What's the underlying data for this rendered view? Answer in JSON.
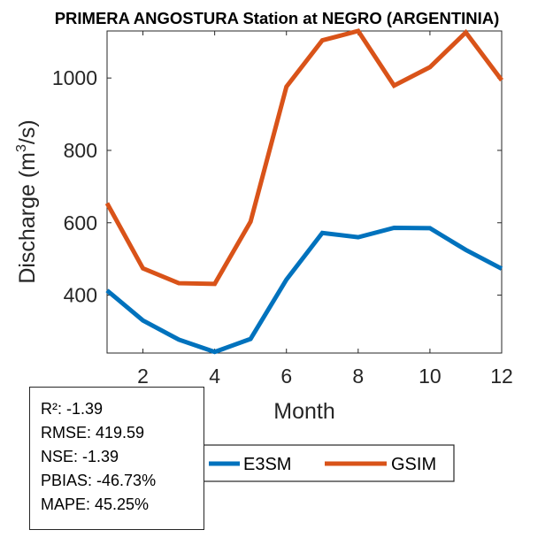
{
  "chart_data": {
    "type": "line",
    "title": "PRIMERA ANGOSTURA  Station at  NEGRO (ARGENTINIA)",
    "xlabel": "Month",
    "ylabel": "Discharge (m",
    "ylabel_sup": "3",
    "ylabel_end": "/s)",
    "xlim": [
      1,
      12
    ],
    "ylim": [
      240,
      1130
    ],
    "xticks": [
      2,
      4,
      6,
      8,
      10,
      12
    ],
    "yticks": [
      400,
      600,
      800,
      1000
    ],
    "x": [
      1,
      2,
      3,
      4,
      5,
      6,
      7,
      8,
      9,
      10,
      11,
      12
    ],
    "series": [
      {
        "name": "E3SM",
        "color": "#0072BD",
        "values": [
          413,
          330,
          277,
          243,
          279,
          443,
          572,
          560,
          586,
          585,
          525,
          473
        ]
      },
      {
        "name": "GSIM",
        "color": "#D95319",
        "values": [
          654,
          474,
          433,
          431,
          603,
          976,
          1104,
          1130,
          979,
          1030,
          1126,
          994
        ]
      }
    ],
    "legend": [
      "E3SM",
      "GSIM"
    ],
    "legend_position": "bottom"
  },
  "stats": {
    "r2": "R²: -1.39",
    "rmse": "RMSE: 419.59",
    "nse": "NSE: -1.39",
    "pbias": "PBIAS: -46.73%",
    "mape": "MAPE: 45.25%"
  }
}
